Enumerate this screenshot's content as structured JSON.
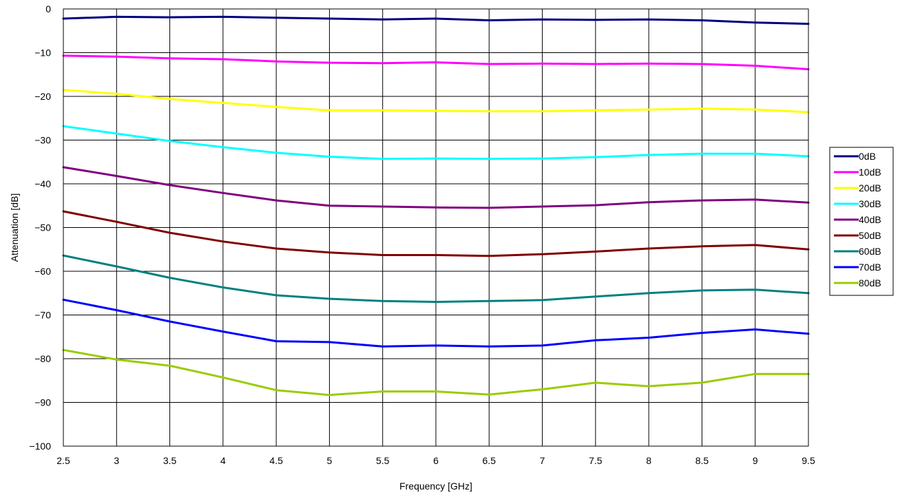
{
  "chart_data": {
    "type": "line",
    "xlabel": "Frequency [GHz]",
    "ylabel": "Attenuation [dB]",
    "xlim": [
      2.5,
      9.5
    ],
    "ylim": [
      -100,
      0
    ],
    "xticks": [
      2.5,
      3,
      3.5,
      4,
      4.5,
      5,
      5.5,
      6,
      6.5,
      7,
      7.5,
      8,
      8.5,
      9,
      9.5
    ],
    "xtick_labels": [
      "2.5",
      "3",
      "3.5",
      "4",
      "4.5",
      "5",
      "5.5",
      "6",
      "6.5",
      "7",
      "7.5",
      "8",
      "8.5",
      "9",
      "9.5"
    ],
    "yticks": [
      0,
      -10,
      -20,
      -30,
      -40,
      -50,
      -60,
      -70,
      -80,
      -90,
      -100
    ],
    "ytick_labels": [
      "0",
      "−10",
      "−20",
      "−30",
      "−40",
      "−50",
      "−60",
      "−70",
      "−80",
      "−90",
      "−100"
    ],
    "grid": true,
    "legend_position": "right",
    "x": [
      2.5,
      3.0,
      3.5,
      4.0,
      4.5,
      5.0,
      5.5,
      6.0,
      6.5,
      7.0,
      7.5,
      8.0,
      8.5,
      9.0,
      9.5
    ],
    "series": [
      {
        "name": "0dB",
        "color": "#000080",
        "values": [
          -2.2,
          -1.8,
          -1.9,
          -1.8,
          -2.0,
          -2.2,
          -2.4,
          -2.2,
          -2.6,
          -2.4,
          -2.5,
          -2.4,
          -2.6,
          -3.1,
          -3.4
        ]
      },
      {
        "name": "10dB",
        "color": "#FF00FF",
        "values": [
          -10.7,
          -10.9,
          -11.3,
          -11.5,
          -12.0,
          -12.3,
          -12.4,
          -12.2,
          -12.6,
          -12.5,
          -12.6,
          -12.5,
          -12.6,
          -13.0,
          -13.8
        ]
      },
      {
        "name": "20dB",
        "color": "#FFFF00",
        "values": [
          -18.5,
          -19.4,
          -20.6,
          -21.5,
          -22.4,
          -23.2,
          -23.2,
          -23.3,
          -23.4,
          -23.4,
          -23.2,
          -23.0,
          -22.8,
          -23.0,
          -23.6
        ]
      },
      {
        "name": "30dB",
        "color": "#00FFFF",
        "values": [
          -26.8,
          -28.5,
          -30.2,
          -31.6,
          -32.9,
          -33.8,
          -34.3,
          -34.2,
          -34.3,
          -34.2,
          -33.9,
          -33.4,
          -33.1,
          -33.1,
          -33.7
        ]
      },
      {
        "name": "40dB",
        "color": "#800080",
        "values": [
          -36.2,
          -38.2,
          -40.3,
          -42.1,
          -43.8,
          -45.0,
          -45.2,
          -45.4,
          -45.5,
          -45.2,
          -44.9,
          -44.2,
          -43.8,
          -43.6,
          -44.3
        ]
      },
      {
        "name": "50dB",
        "color": "#800000",
        "values": [
          -46.3,
          -48.7,
          -51.2,
          -53.2,
          -54.8,
          -55.7,
          -56.3,
          -56.3,
          -56.5,
          -56.1,
          -55.5,
          -54.8,
          -54.3,
          -54.0,
          -55.0
        ]
      },
      {
        "name": "60dB",
        "color": "#008080",
        "values": [
          -56.4,
          -58.9,
          -61.5,
          -63.7,
          -65.5,
          -66.3,
          -66.8,
          -67.0,
          -66.8,
          -66.6,
          -65.8,
          -65.0,
          -64.4,
          -64.2,
          -65.0
        ]
      },
      {
        "name": "70dB",
        "color": "#0000FF",
        "values": [
          -66.5,
          -68.9,
          -71.5,
          -73.8,
          -76.0,
          -76.2,
          -77.2,
          -77.0,
          -77.2,
          -77.0,
          -75.8,
          -75.2,
          -74.1,
          -73.3,
          -74.3
        ]
      },
      {
        "name": "80dB",
        "color": "#99CC00",
        "values": [
          -78.0,
          -80.2,
          -81.6,
          -84.3,
          -87.2,
          -88.3,
          -87.5,
          -87.5,
          -88.2,
          -87.0,
          -85.5,
          -86.3,
          -85.5,
          -83.5,
          -83.5
        ]
      }
    ]
  }
}
